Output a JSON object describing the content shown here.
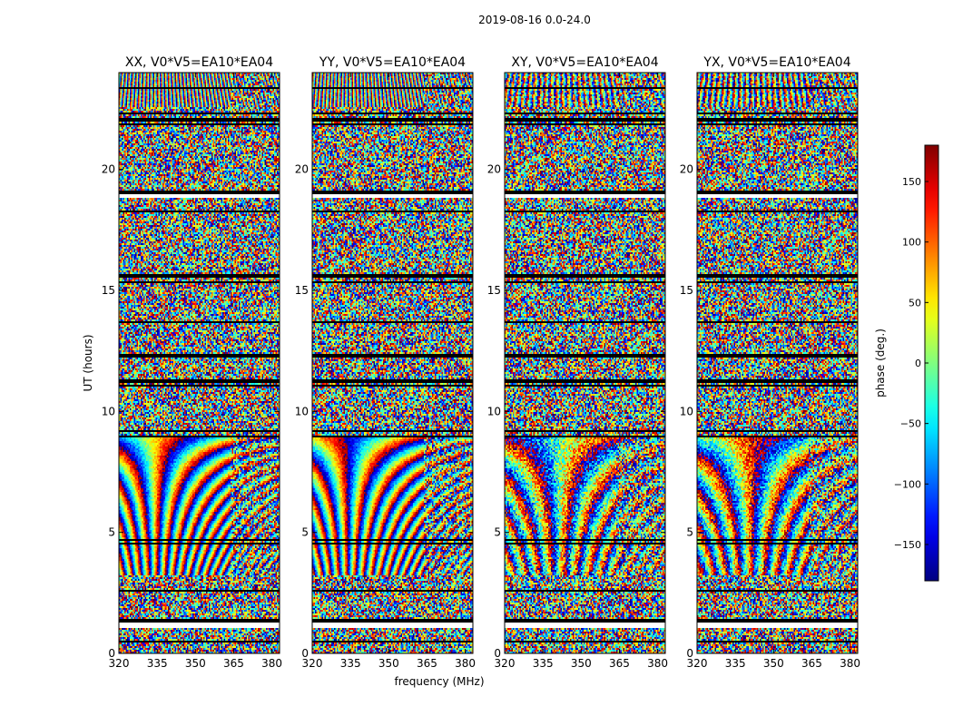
{
  "figure": {
    "suptitle": "2019-08-16 0.0-24.0"
  },
  "chart_data": {
    "type": "heatmap",
    "title": "2019-08-16 0.0-24.0",
    "xlabel": "frequency (MHz)",
    "ylabel": "UT (hours)",
    "xlim": [
      320,
      383
    ],
    "ylim": [
      0,
      24
    ],
    "xticks": [
      "320",
      "335",
      "350",
      "365",
      "380"
    ],
    "yticks": [
      "0",
      "5",
      "10",
      "15",
      "20"
    ],
    "xtick_values": [
      320,
      335,
      350,
      365,
      380
    ],
    "ytick_values": [
      0,
      5,
      10,
      15,
      20
    ],
    "panels": [
      {
        "title": "XX, V0*V5=EA10*EA04",
        "pol": "XX",
        "noise": 0.25
      },
      {
        "title": "YY, V0*V5=EA10*EA04",
        "pol": "YY",
        "noise": 0.25
      },
      {
        "title": "XY, V0*V5=EA10*EA04",
        "pol": "XY",
        "noise": 0.7
      },
      {
        "title": "YX, V0*V5=EA10*EA04",
        "pol": "YX",
        "noise": 0.6
      }
    ],
    "coherent_band_hours": [
      3.2,
      9.0
    ],
    "rfi_band_mhz": [
      364,
      383
    ],
    "flagged_rows_hours": [
      0.5,
      1.15,
      1.35,
      2.6,
      4.55,
      4.7,
      8.95,
      9.2,
      11.05,
      11.25,
      12.3,
      13.7,
      15.35,
      15.6,
      18.25,
      18.85,
      19.05,
      21.85,
      22.05,
      22.3,
      23.35
    ],
    "colorbar": {
      "label": "phase (deg.)",
      "range": [
        -180,
        180
      ],
      "ticks": [
        "−150",
        "−100",
        "−50",
        "0",
        "50",
        "100",
        "150"
      ],
      "tick_values": [
        -150,
        -100,
        -50,
        0,
        50,
        100,
        150
      ],
      "colormap": "jet"
    }
  }
}
